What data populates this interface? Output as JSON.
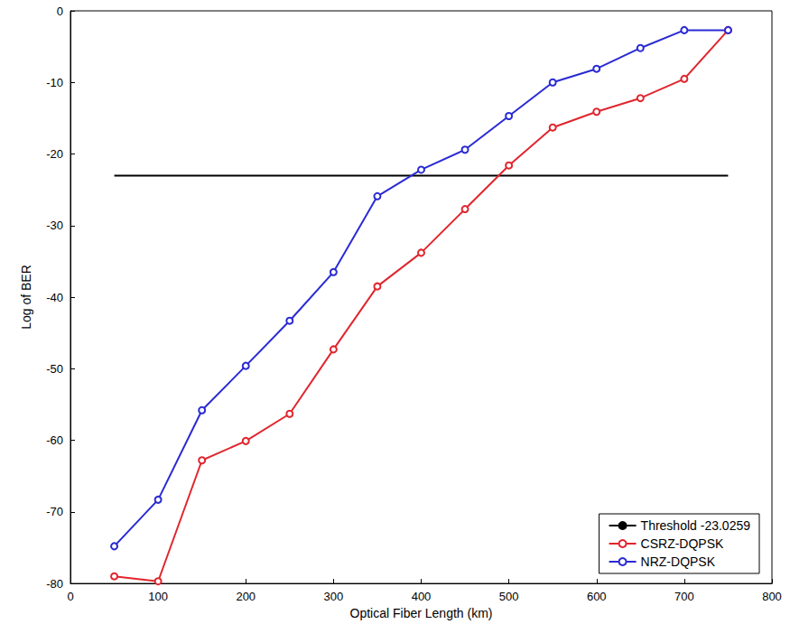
{
  "chart_data": {
    "type": "line",
    "x_label": "Optical Fiber Length (km)",
    "y_label": "Log of BER",
    "x": [
      50,
      100,
      150,
      200,
      250,
      300,
      350,
      400,
      450,
      500,
      550,
      600,
      650,
      700,
      750
    ],
    "series": [
      {
        "name": "Threshold -23.0259",
        "color": "#000000",
        "marker": "none",
        "line_style": "solid",
        "values": [
          -23.0259,
          -23.0259,
          -23.0259,
          -23.0259,
          -23.0259,
          -23.0259,
          -23.0259,
          -23.0259,
          -23.0259,
          -23.0259,
          -23.0259,
          -23.0259,
          -23.0259,
          -23.0259,
          -23.0259
        ]
      },
      {
        "name": "CSRZ-DQPSK",
        "color": "#e0262e",
        "marker": "circle",
        "line_style": "solid",
        "values": [
          -79.0,
          -79.7,
          -62.8,
          -60.1,
          -56.3,
          -47.3,
          -38.5,
          -33.8,
          -27.7,
          -21.6,
          -16.3,
          -14.1,
          -12.2,
          -9.5,
          -2.7
        ]
      },
      {
        "name": "NRZ-DQPSK",
        "color": "#2a2ad4",
        "marker": "circle",
        "line_style": "solid",
        "values": [
          -74.8,
          -68.3,
          -55.8,
          -49.6,
          -43.3,
          -36.5,
          -25.9,
          -22.2,
          -19.4,
          -14.7,
          -10.0,
          -8.1,
          -5.2,
          -2.7,
          -2.7
        ]
      }
    ],
    "xlim": [
      0,
      800
    ],
    "xticks": [
      0,
      100,
      200,
      300,
      400,
      500,
      600,
      700,
      800
    ],
    "ylim": [
      -80,
      0
    ],
    "yticks": [
      -80,
      -70,
      -60,
      -50,
      -40,
      -30,
      -20,
      -10,
      0
    ],
    "grid": false,
    "legend": "lower right"
  }
}
